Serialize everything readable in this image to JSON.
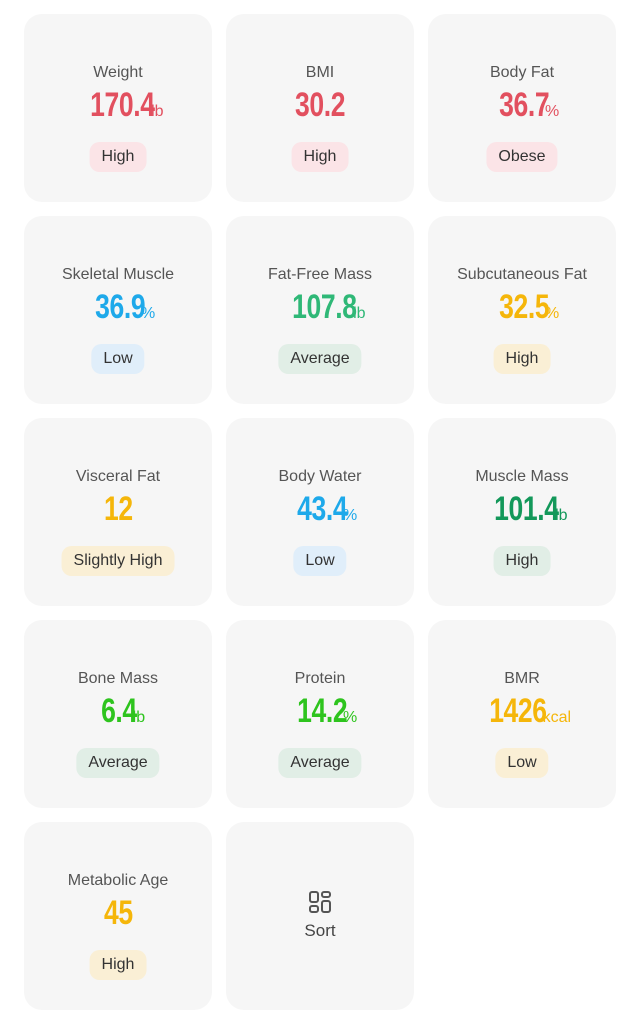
{
  "cards": [
    {
      "label": "Weight",
      "value": "170.4",
      "unit": "lb",
      "status": "High",
      "color": "#e2505f",
      "badge_color": "#fbe4e7"
    },
    {
      "label": "BMI",
      "value": "30.2",
      "status": "High",
      "color": "#e2505f",
      "badge_color": "#fbe4e7"
    },
    {
      "label": "Body Fat",
      "value": "36.7",
      "unit": "%",
      "status": "Obese",
      "color": "#e2505f",
      "badge_color": "#fbe4e7"
    },
    {
      "label": "Skeletal Muscle",
      "value": "36.9",
      "unit": "%",
      "status": "Low",
      "color": "#1ea9ea",
      "badge_color": "#e0eefa"
    },
    {
      "label": "Fat-Free Mass",
      "value": "107.8",
      "unit": "lb",
      "status": "Average",
      "color": "#2fb877",
      "badge_color": "#e1eee6"
    },
    {
      "label": "Subcutaneous Fat",
      "value": "32.5",
      "unit": "%",
      "status": "High",
      "color": "#f5b60a",
      "badge_color": "#faefd5"
    },
    {
      "label": "Visceral Fat",
      "value": "12",
      "status": "Slightly High",
      "color": "#f5b60a",
      "badge_color": "#faefd5"
    },
    {
      "label": "Body Water",
      "value": "43.4",
      "unit": "%",
      "status": "Low",
      "color": "#1ea9ea",
      "badge_color": "#e0eefa"
    },
    {
      "label": "Muscle Mass",
      "value": "101.4",
      "unit": "lb",
      "status": "High",
      "color": "#13985a",
      "badge_color": "#e1eee6"
    },
    {
      "label": "Bone Mass",
      "value": "6.4",
      "unit": "lb",
      "status": "Average",
      "color": "#2ec41e",
      "badge_color": "#e1eee6"
    },
    {
      "label": "Protein",
      "value": "14.2",
      "unit": "%",
      "status": "Average",
      "color": "#2ec41e",
      "badge_color": "#e1eee6"
    },
    {
      "label": "BMR",
      "value": "1426",
      "unit": "kcal",
      "status": "Low",
      "color": "#f5b60a",
      "badge_color": "#faefd5"
    },
    {
      "label": "Metabolic Age",
      "value": "45",
      "status": "High",
      "color": "#f5b60a",
      "badge_color": "#faefd5"
    }
  ],
  "sort": {
    "label": "Sort"
  }
}
